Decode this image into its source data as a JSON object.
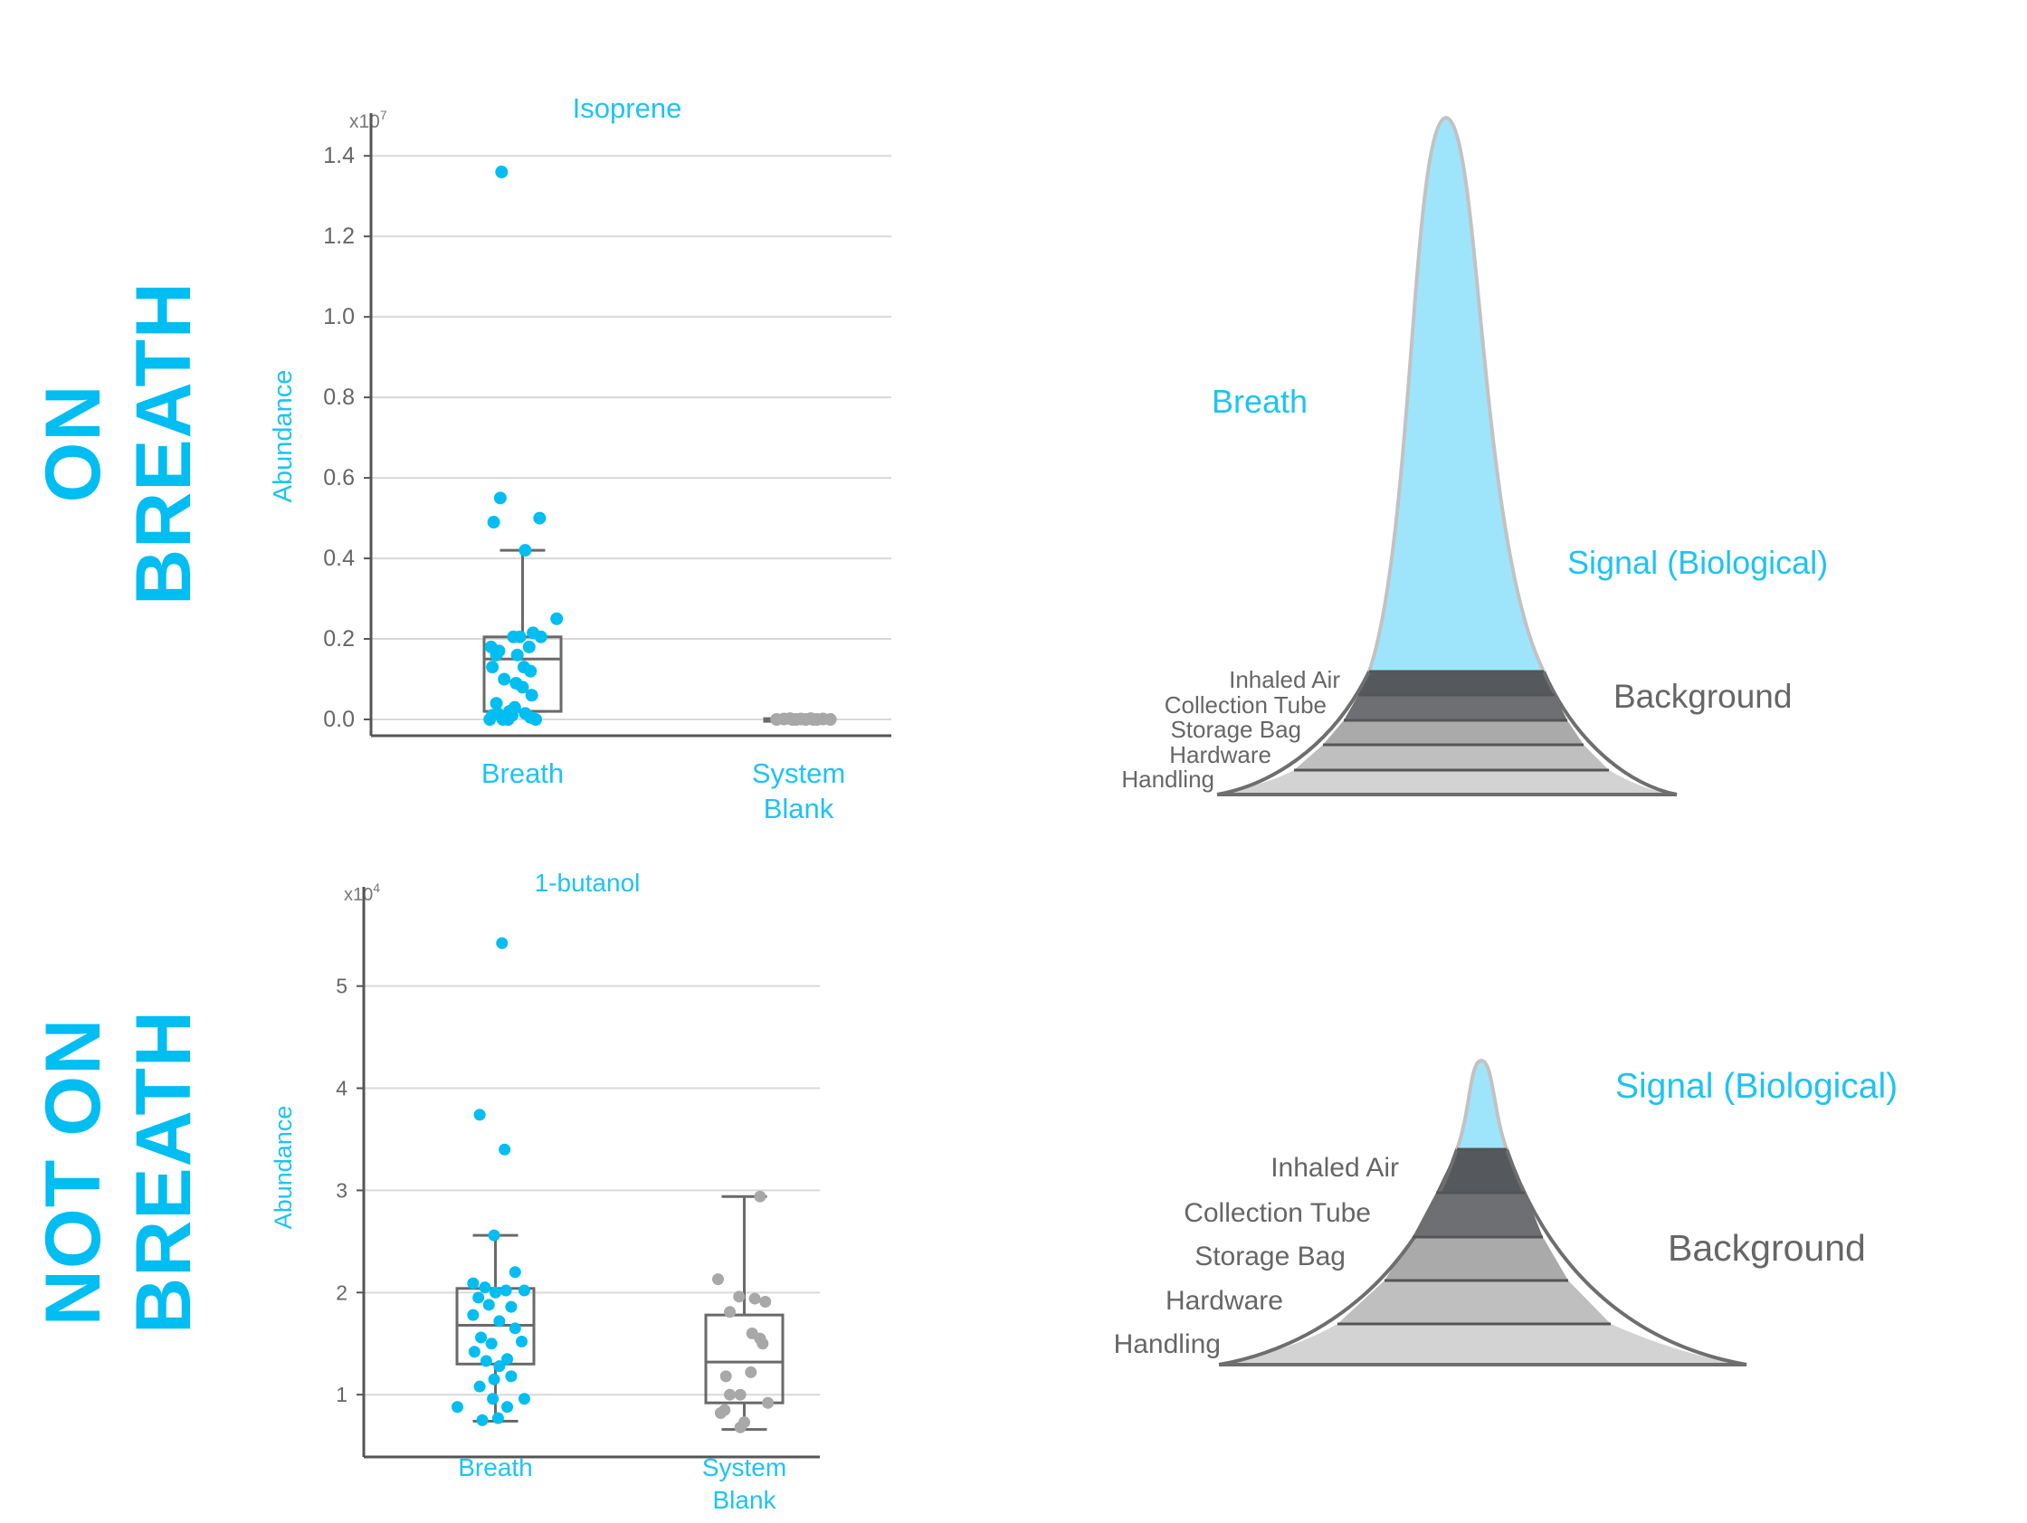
{
  "row_labels": {
    "top": [
      "ON",
      "BREATH"
    ],
    "bottom": [
      "NOT ON",
      "BREATH"
    ]
  },
  "colors": {
    "accent": "#00bdf2",
    "breath_fill": "#9ee5fb",
    "system_blank_points": "#a8a8a8",
    "axis": "#555555",
    "grid": "#d9d9d9"
  },
  "chart_data": [
    {
      "type": "box-scatter",
      "title": "Isoprene",
      "ylabel": "Abundance",
      "multiplier": "x10",
      "multiplier_exp": "7",
      "ylim": [
        0,
        1.45
      ],
      "yticks": [
        "0.0",
        "0.2",
        "0.4",
        "0.6",
        "0.8",
        "1.0",
        "1.2",
        "1.4"
      ],
      "categories": [
        [
          "Breath"
        ],
        [
          "System",
          "Blank"
        ]
      ],
      "grid": true,
      "series": [
        {
          "box": {
            "min": 0.02,
            "q1": 0.02,
            "median": 0.15,
            "q3": 0.205,
            "max": 0.42
          },
          "points": [
            [
              0.34,
              1.36
            ],
            [
              0.33,
              0.55
            ],
            [
              0.28,
              0.49
            ],
            [
              0.63,
              0.5
            ],
            [
              0.52,
              0.42
            ],
            [
              0.76,
              0.25
            ],
            [
              0.43,
              0.205
            ],
            [
              0.58,
              0.215
            ],
            [
              0.64,
              0.205
            ],
            [
              0.48,
              0.205
            ],
            [
              0.26,
              0.18
            ],
            [
              0.32,
              0.17
            ],
            [
              0.55,
              0.18
            ],
            [
              0.3,
              0.16
            ],
            [
              0.46,
              0.16
            ],
            [
              0.27,
              0.13
            ],
            [
              0.51,
              0.13
            ],
            [
              0.56,
              0.12
            ],
            [
              0.36,
              0.1
            ],
            [
              0.5,
              0.08
            ],
            [
              0.45,
              0.09
            ],
            [
              0.57,
              0.06
            ],
            [
              0.3,
              0.04
            ],
            [
              0.44,
              0.03
            ],
            [
              0.27,
              0.01
            ],
            [
              0.31,
              0.015
            ],
            [
              0.35,
              0.0
            ],
            [
              0.4,
              0.02
            ],
            [
              0.52,
              0.015
            ],
            [
              0.56,
              0.005
            ],
            [
              0.42,
              0.01
            ],
            [
              0.6,
              0.0
            ],
            [
              0.39,
              0.0
            ],
            [
              0.25,
              0.0
            ]
          ]
        },
        {
          "box": {
            "min": 0.0,
            "q1": 0.0,
            "median": 0.001,
            "q3": 0.002,
            "max": 0.003
          },
          "points": [
            [
              0.32,
              0.0
            ],
            [
              0.38,
              0.001
            ],
            [
              0.43,
              0.002
            ],
            [
              0.48,
              0.0
            ],
            [
              0.52,
              0.001
            ],
            [
              0.56,
              0.0
            ],
            [
              0.6,
              0.002
            ],
            [
              0.65,
              0.0
            ],
            [
              0.7,
              0.001
            ],
            [
              0.76,
              0.0
            ],
            [
              0.45,
              0.0
            ],
            [
              0.62,
              0.0
            ]
          ]
        }
      ]
    },
    {
      "type": "box-scatter",
      "title": "1-butanol",
      "ylabel": "Abundance",
      "multiplier": "x10",
      "multiplier_exp": "4",
      "ylim": [
        0.55,
        5.75
      ],
      "yticks": [
        "1",
        "2",
        "3",
        "4",
        "5"
      ],
      "categories": [
        [
          "Breath"
        ],
        [
          "System",
          "Blank"
        ]
      ],
      "grid": true,
      "series": [
        {
          "box": {
            "min": 0.74,
            "q1": 1.3,
            "median": 1.68,
            "q3": 2.04,
            "max": 2.56
          },
          "points": [
            [
              0.55,
              5.42
            ],
            [
              0.38,
              3.74
            ],
            [
              0.57,
              3.4
            ],
            [
              0.49,
              2.56
            ],
            [
              0.33,
              2.09
            ],
            [
              0.65,
              2.2
            ],
            [
              0.42,
              2.05
            ],
            [
              0.58,
              2.02
            ],
            [
              0.72,
              2.02
            ],
            [
              0.37,
              1.95
            ],
            [
              0.5,
              2.0
            ],
            [
              0.62,
              1.86
            ],
            [
              0.33,
              1.78
            ],
            [
              0.45,
              1.88
            ],
            [
              0.53,
              1.72
            ],
            [
              0.65,
              1.65
            ],
            [
              0.7,
              1.52
            ],
            [
              0.39,
              1.56
            ],
            [
              0.47,
              1.5
            ],
            [
              0.34,
              1.42
            ],
            [
              0.59,
              1.35
            ],
            [
              0.43,
              1.33
            ],
            [
              0.53,
              1.28
            ],
            [
              0.62,
              1.18
            ],
            [
              0.49,
              1.15
            ],
            [
              0.38,
              1.08
            ],
            [
              0.72,
              0.96
            ],
            [
              0.48,
              0.96
            ],
            [
              0.59,
              0.88
            ],
            [
              0.21,
              0.88
            ],
            [
              0.4,
              0.75
            ],
            [
              0.52,
              0.77
            ]
          ]
        },
        {
          "box": {
            "min": 0.66,
            "q1": 0.92,
            "median": 1.32,
            "q3": 1.78,
            "max": 2.94
          },
          "points": [
            [
              0.62,
              2.94
            ],
            [
              0.3,
              2.13
            ],
            [
              0.46,
              1.96
            ],
            [
              0.58,
              1.94
            ],
            [
              0.66,
              1.91
            ],
            [
              0.39,
              1.81
            ],
            [
              0.56,
              1.6
            ],
            [
              0.62,
              1.55
            ],
            [
              0.64,
              1.5
            ],
            [
              0.36,
              1.18
            ],
            [
              0.55,
              1.22
            ],
            [
              0.39,
              1.0
            ],
            [
              0.47,
              1.0
            ],
            [
              0.68,
              0.92
            ],
            [
              0.35,
              0.85
            ],
            [
              0.32,
              0.82
            ],
            [
              0.5,
              0.73
            ],
            [
              0.47,
              0.68
            ]
          ]
        }
      ]
    },
    {
      "type": "diagram-peak",
      "signal_label": "Signal (Biological)",
      "breath_label": "Breath",
      "background_label": "Background",
      "layers": [
        "Inhaled Air",
        "Collection Tube",
        "Storage Bag",
        "Hardware",
        "Handling"
      ],
      "layer_colors": [
        "#55585d",
        "#6e6f72",
        "#aaaaaa",
        "#bfbfbf",
        "#d3d3d3"
      ]
    },
    {
      "type": "diagram-peak",
      "signal_label": "Signal (Biological)",
      "background_label": "Background",
      "layers": [
        "Inhaled Air",
        "Collection Tube",
        "Storage Bag",
        "Hardware",
        "Handling"
      ],
      "layer_colors": [
        "#55585d",
        "#6e6f72",
        "#aaaaaa",
        "#bfbfbf",
        "#d3d3d3"
      ]
    }
  ]
}
